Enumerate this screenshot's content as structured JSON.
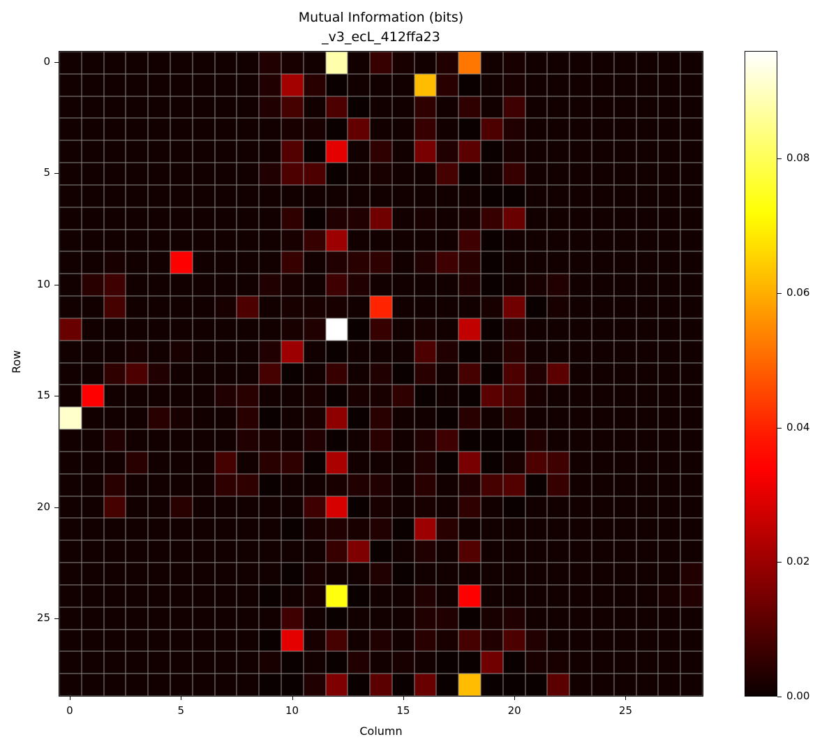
{
  "chart_data": {
    "type": "heatmap",
    "title": "Mutual Information (bits)",
    "subtitle": "_v3_ecL_412ffa23",
    "xlabel": "Column",
    "ylabel": "Row",
    "colormap": "hot",
    "vmin": 0.0,
    "vmax": 0.096,
    "x_ticks": [
      0,
      5,
      10,
      15,
      20,
      25
    ],
    "y_ticks": [
      0,
      5,
      10,
      15,
      20,
      25
    ],
    "colorbar_ticks": [
      "0.00",
      "0.02",
      "0.04",
      "0.06",
      "0.08"
    ],
    "colorbar_tick_values": [
      0.0,
      0.02,
      0.04,
      0.06,
      0.08
    ],
    "n_rows": 29,
    "n_cols": 29,
    "grid": true,
    "matrix": [
      [
        0.001,
        0.001,
        0.001,
        0.001,
        0.001,
        0.001,
        0.001,
        0.001,
        0.001,
        0.003,
        0.002,
        0.001,
        0.088,
        0.001,
        0.006,
        0.002,
        0.001,
        0.003,
        0.052,
        0.001,
        0.002,
        0.001,
        0.001,
        0.001,
        0.001,
        0.001,
        0.001,
        0.001,
        0.001
      ],
      [
        0.001,
        0.001,
        0.001,
        0.001,
        0.001,
        0.001,
        0.001,
        0.001,
        0.001,
        0.003,
        0.021,
        0.004,
        0.0,
        0.001,
        0.001,
        0.001,
        0.062,
        0.004,
        0.0,
        0.001,
        0.002,
        0.001,
        0.001,
        0.001,
        0.001,
        0.001,
        0.001,
        0.001,
        0.001
      ],
      [
        0.001,
        0.001,
        0.001,
        0.001,
        0.001,
        0.001,
        0.001,
        0.001,
        0.001,
        0.003,
        0.008,
        0.001,
        0.009,
        0.0,
        0.001,
        0.001,
        0.005,
        0.001,
        0.005,
        0.001,
        0.007,
        0.001,
        0.001,
        0.001,
        0.001,
        0.001,
        0.001,
        0.001,
        0.001
      ],
      [
        0.001,
        0.001,
        0.001,
        0.001,
        0.001,
        0.001,
        0.001,
        0.001,
        0.001,
        0.001,
        0.002,
        0.002,
        0.0,
        0.012,
        0.001,
        0.001,
        0.006,
        0.001,
        0.0,
        0.009,
        0.003,
        0.001,
        0.001,
        0.001,
        0.001,
        0.001,
        0.001,
        0.001,
        0.001
      ],
      [
        0.001,
        0.001,
        0.001,
        0.001,
        0.001,
        0.001,
        0.001,
        0.001,
        0.001,
        0.001,
        0.01,
        0.0,
        0.03,
        0.001,
        0.005,
        0.001,
        0.015,
        0.003,
        0.011,
        0.0,
        0.002,
        0.001,
        0.001,
        0.001,
        0.001,
        0.001,
        0.001,
        0.001,
        0.001
      ],
      [
        0.001,
        0.001,
        0.001,
        0.001,
        0.001,
        0.001,
        0.001,
        0.001,
        0.001,
        0.003,
        0.009,
        0.009,
        0.0,
        0.001,
        0.002,
        0.001,
        0.001,
        0.008,
        0.0,
        0.001,
        0.006,
        0.001,
        0.001,
        0.001,
        0.001,
        0.001,
        0.001,
        0.001,
        0.001
      ],
      [
        0.001,
        0.001,
        0.001,
        0.001,
        0.001,
        0.001,
        0.001,
        0.001,
        0.001,
        0.001,
        0.001,
        0.001,
        0.001,
        0.001,
        0.001,
        0.001,
        0.001,
        0.001,
        0.001,
        0.0,
        0.0,
        0.001,
        0.001,
        0.001,
        0.001,
        0.001,
        0.001,
        0.001,
        0.001
      ],
      [
        0.001,
        0.001,
        0.001,
        0.001,
        0.001,
        0.001,
        0.001,
        0.001,
        0.001,
        0.001,
        0.005,
        0.0,
        0.003,
        0.003,
        0.014,
        0.001,
        0.002,
        0.001,
        0.002,
        0.006,
        0.013,
        0.001,
        0.001,
        0.001,
        0.001,
        0.001,
        0.001,
        0.001,
        0.001
      ],
      [
        0.001,
        0.001,
        0.001,
        0.001,
        0.001,
        0.001,
        0.001,
        0.001,
        0.001,
        0.001,
        0.002,
        0.006,
        0.02,
        0.001,
        0.001,
        0.001,
        0.001,
        0.001,
        0.007,
        0.0,
        0.001,
        0.001,
        0.001,
        0.001,
        0.001,
        0.001,
        0.001,
        0.001,
        0.001
      ],
      [
        0.001,
        0.001,
        0.002,
        0.001,
        0.001,
        0.034,
        0.001,
        0.001,
        0.001,
        0.001,
        0.006,
        0.001,
        0.003,
        0.004,
        0.005,
        0.001,
        0.003,
        0.007,
        0.004,
        0.0,
        0.001,
        0.001,
        0.001,
        0.001,
        0.001,
        0.001,
        0.001,
        0.001,
        0.001
      ],
      [
        0.001,
        0.004,
        0.007,
        0.001,
        0.001,
        0.001,
        0.001,
        0.001,
        0.001,
        0.003,
        0.002,
        0.001,
        0.007,
        0.003,
        0.001,
        0.001,
        0.001,
        0.001,
        0.003,
        0.0,
        0.001,
        0.002,
        0.003,
        0.001,
        0.001,
        0.001,
        0.001,
        0.001,
        0.001
      ],
      [
        0.001,
        0.001,
        0.008,
        0.001,
        0.001,
        0.001,
        0.001,
        0.002,
        0.009,
        0.001,
        0.002,
        0.002,
        0.002,
        0.001,
        0.04,
        0.001,
        0.001,
        0.001,
        0.001,
        0.002,
        0.014,
        0.0,
        0.002,
        0.001,
        0.001,
        0.001,
        0.001,
        0.001,
        0.001
      ],
      [
        0.013,
        0.001,
        0.001,
        0.001,
        0.001,
        0.001,
        0.001,
        0.001,
        0.001,
        0.001,
        0.002,
        0.003,
        0.096,
        0.0,
        0.006,
        0.001,
        0.002,
        0.001,
        0.025,
        0.0,
        0.003,
        0.001,
        0.001,
        0.001,
        0.001,
        0.001,
        0.001,
        0.001,
        0.001
      ],
      [
        0.001,
        0.001,
        0.001,
        0.002,
        0.001,
        0.002,
        0.001,
        0.001,
        0.001,
        0.003,
        0.02,
        0.001,
        0.0,
        0.001,
        0.001,
        0.001,
        0.009,
        0.003,
        0.0,
        0.001,
        0.004,
        0.001,
        0.001,
        0.001,
        0.001,
        0.001,
        0.001,
        0.001,
        0.001
      ],
      [
        0.001,
        0.001,
        0.005,
        0.009,
        0.003,
        0.001,
        0.001,
        0.001,
        0.001,
        0.008,
        0.0,
        0.001,
        0.006,
        0.001,
        0.003,
        0.0,
        0.004,
        0.001,
        0.008,
        0.0,
        0.009,
        0.003,
        0.011,
        0.001,
        0.001,
        0.001,
        0.001,
        0.001,
        0.001
      ],
      [
        0.001,
        0.035,
        0.001,
        0.001,
        0.001,
        0.001,
        0.001,
        0.003,
        0.004,
        0.001,
        0.001,
        0.002,
        0.0,
        0.002,
        0.002,
        0.005,
        0.0,
        0.001,
        0.0,
        0.011,
        0.008,
        0.002,
        0.001,
        0.001,
        0.001,
        0.001,
        0.001,
        0.001,
        0.001
      ],
      [
        0.091,
        0.001,
        0.001,
        0.001,
        0.004,
        0.002,
        0.001,
        0.001,
        0.004,
        0.0,
        0.001,
        0.002,
        0.018,
        0.0,
        0.004,
        0.001,
        0.001,
        0.0,
        0.004,
        0.001,
        0.004,
        0.001,
        0.001,
        0.001,
        0.001,
        0.001,
        0.001,
        0.001,
        0.001
      ],
      [
        0.001,
        0.001,
        0.003,
        0.001,
        0.001,
        0.001,
        0.001,
        0.001,
        0.003,
        0.002,
        0.001,
        0.003,
        0.0,
        0.001,
        0.004,
        0.001,
        0.003,
        0.007,
        0.0,
        0.0,
        0.0,
        0.003,
        0.001,
        0.001,
        0.001,
        0.001,
        0.001,
        0.001,
        0.001
      ],
      [
        0.001,
        0.001,
        0.001,
        0.004,
        0.001,
        0.001,
        0.001,
        0.008,
        0.001,
        0.004,
        0.005,
        0.0,
        0.022,
        0.001,
        0.001,
        0.001,
        0.003,
        0.0,
        0.015,
        0.0,
        0.002,
        0.009,
        0.007,
        0.001,
        0.001,
        0.001,
        0.001,
        0.001,
        0.001
      ],
      [
        0.001,
        0.001,
        0.004,
        0.001,
        0.001,
        0.001,
        0.001,
        0.005,
        0.005,
        0.0,
        0.001,
        0.001,
        0.002,
        0.003,
        0.003,
        0.001,
        0.004,
        0.001,
        0.003,
        0.008,
        0.01,
        0.0,
        0.006,
        0.001,
        0.001,
        0.001,
        0.001,
        0.001,
        0.001
      ],
      [
        0.001,
        0.001,
        0.008,
        0.001,
        0.001,
        0.004,
        0.001,
        0.001,
        0.001,
        0.001,
        0.001,
        0.007,
        0.028,
        0.0,
        0.002,
        0.001,
        0.002,
        0.001,
        0.005,
        0.001,
        0.0,
        0.001,
        0.001,
        0.001,
        0.001,
        0.001,
        0.001,
        0.001,
        0.001
      ],
      [
        0.001,
        0.001,
        0.001,
        0.001,
        0.001,
        0.001,
        0.001,
        0.001,
        0.001,
        0.001,
        0.0,
        0.002,
        0.003,
        0.002,
        0.003,
        0.0,
        0.02,
        0.004,
        0.001,
        0.001,
        0.001,
        0.001,
        0.001,
        0.001,
        0.001,
        0.001,
        0.001,
        0.001,
        0.001
      ],
      [
        0.001,
        0.001,
        0.001,
        0.001,
        0.001,
        0.001,
        0.001,
        0.001,
        0.001,
        0.001,
        0.001,
        0.001,
        0.006,
        0.016,
        0.0,
        0.001,
        0.003,
        0.001,
        0.01,
        0.001,
        0.001,
        0.001,
        0.001,
        0.001,
        0.001,
        0.001,
        0.001,
        0.001,
        0.001
      ],
      [
        0.001,
        0.001,
        0.001,
        0.001,
        0.001,
        0.001,
        0.001,
        0.001,
        0.001,
        0.001,
        0.0,
        0.002,
        0.001,
        0.001,
        0.003,
        0.0,
        0.001,
        0.001,
        0.001,
        0.001,
        0.001,
        0.001,
        0.001,
        0.001,
        0.001,
        0.001,
        0.001,
        0.001,
        0.003
      ],
      [
        0.001,
        0.001,
        0.001,
        0.001,
        0.001,
        0.001,
        0.001,
        0.001,
        0.001,
        0.0,
        0.001,
        0.002,
        0.073,
        0.0,
        0.001,
        0.001,
        0.003,
        0.001,
        0.035,
        0.001,
        0.001,
        0.001,
        0.001,
        0.001,
        0.001,
        0.001,
        0.001,
        0.002,
        0.003
      ],
      [
        0.001,
        0.001,
        0.001,
        0.001,
        0.001,
        0.001,
        0.001,
        0.001,
        0.001,
        0.001,
        0.007,
        0.001,
        0.0,
        0.001,
        0.001,
        0.001,
        0.003,
        0.003,
        0.0,
        0.002,
        0.003,
        0.001,
        0.001,
        0.001,
        0.001,
        0.001,
        0.001,
        0.001,
        0.001
      ],
      [
        0.001,
        0.001,
        0.001,
        0.001,
        0.001,
        0.001,
        0.001,
        0.001,
        0.001,
        0.0,
        0.03,
        0.002,
        0.008,
        0.001,
        0.003,
        0.001,
        0.004,
        0.002,
        0.008,
        0.003,
        0.009,
        0.003,
        0.001,
        0.001,
        0.001,
        0.001,
        0.001,
        0.001,
        0.001
      ],
      [
        0.001,
        0.001,
        0.001,
        0.001,
        0.001,
        0.001,
        0.001,
        0.001,
        0.001,
        0.002,
        0.0,
        0.001,
        0.0,
        0.003,
        0.001,
        0.002,
        0.001,
        0.0,
        0.0,
        0.014,
        0.0,
        0.002,
        0.002,
        0.001,
        0.001,
        0.001,
        0.001,
        0.001,
        0.001
      ],
      [
        0.001,
        0.001,
        0.001,
        0.001,
        0.001,
        0.001,
        0.001,
        0.001,
        0.001,
        0.0,
        0.0,
        0.003,
        0.016,
        0.0,
        0.011,
        0.0,
        0.013,
        0.0,
        0.062,
        0.0,
        0.0,
        0.0,
        0.011,
        0.001,
        0.001,
        0.001,
        0.001,
        0.001,
        0.001
      ]
    ]
  }
}
